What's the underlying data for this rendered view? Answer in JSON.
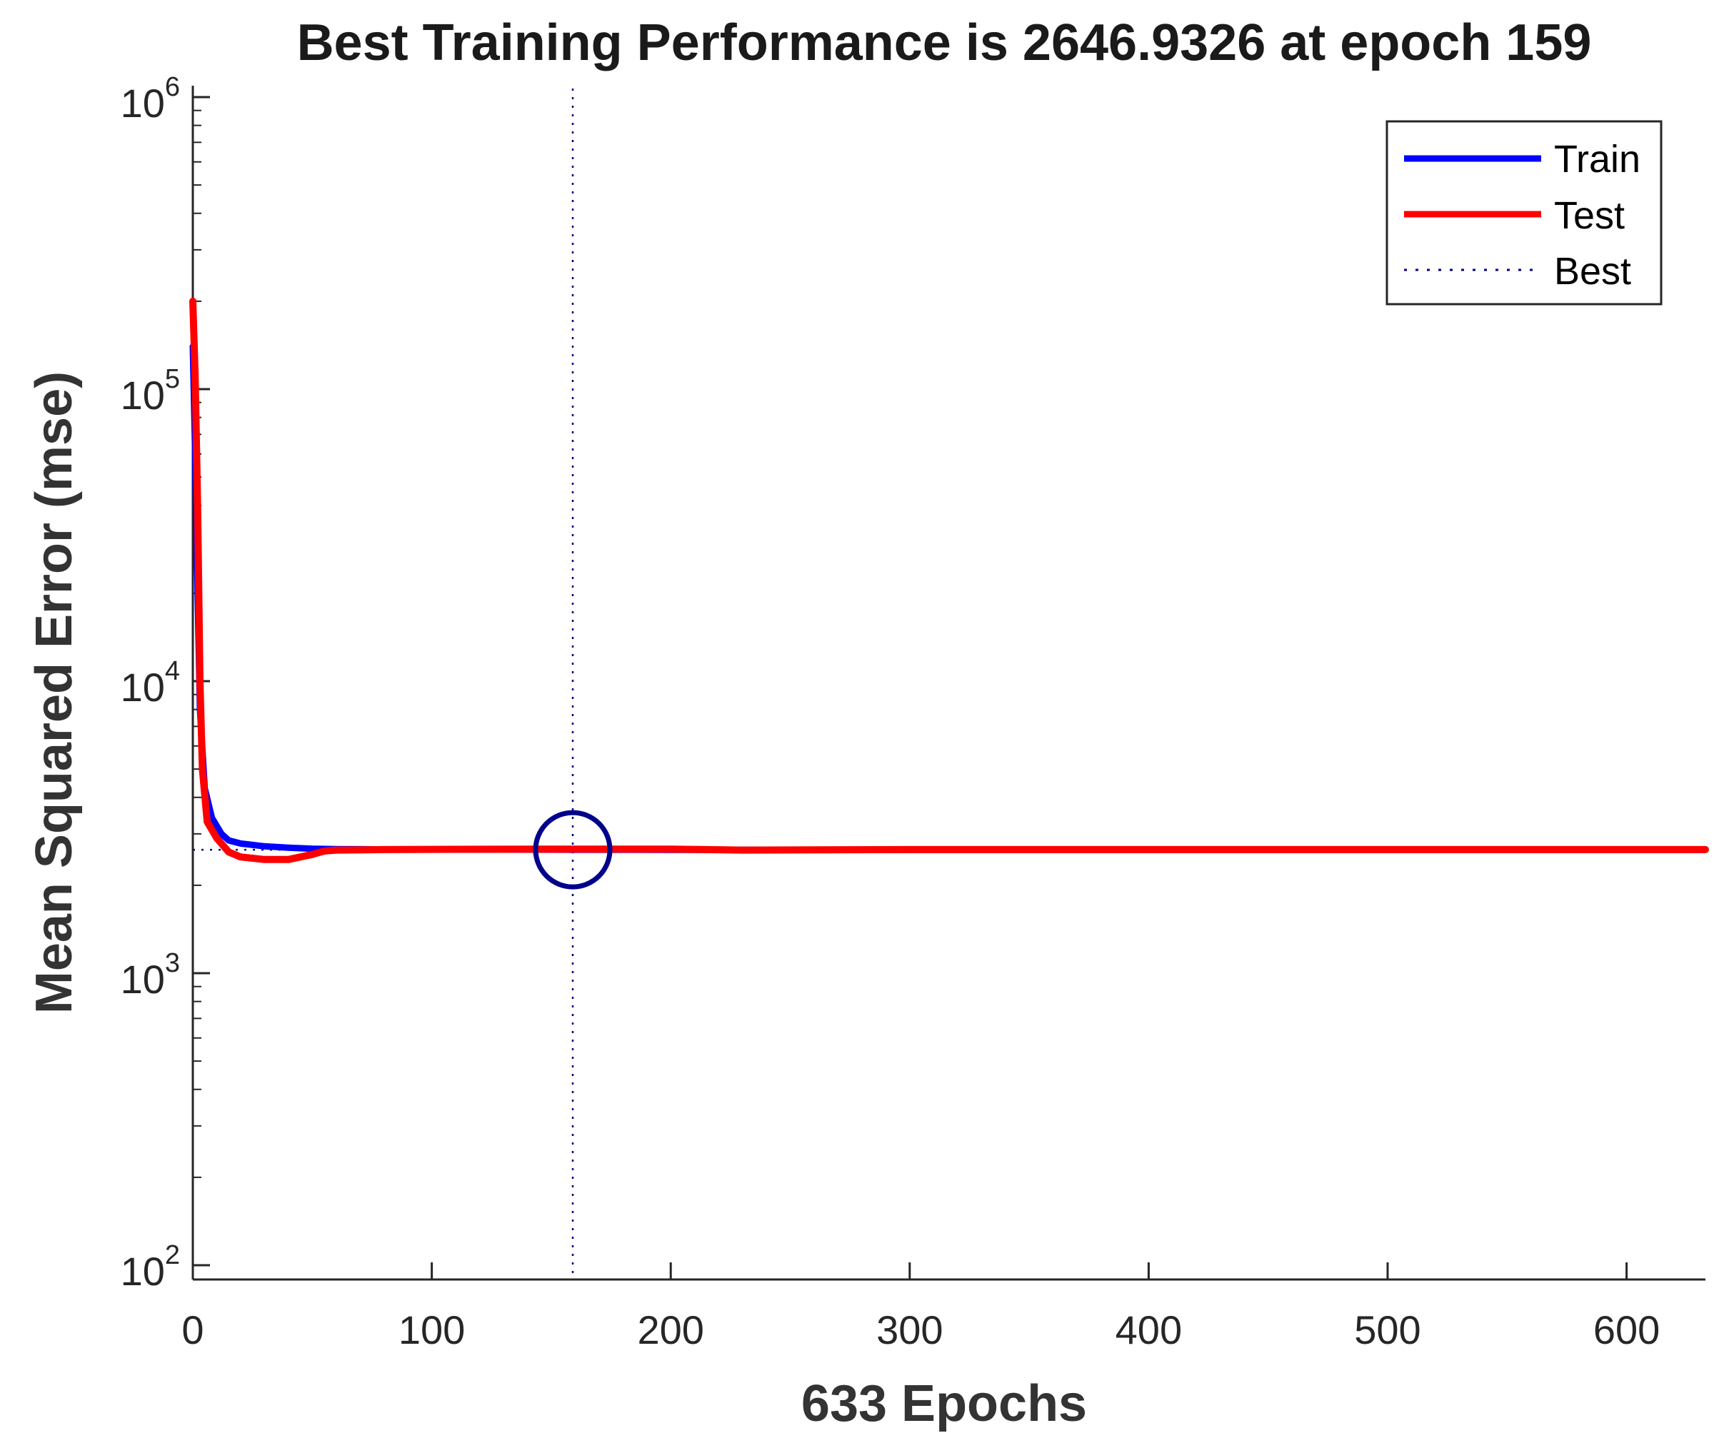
{
  "chart_data": {
    "type": "line",
    "title": "Best Training Performance is 2646.9326 at epoch 159",
    "xlabel": "633 Epochs",
    "ylabel": "Mean Squared Error  (mse)",
    "xlim": [
      0,
      633
    ],
    "ylim": [
      100,
      1000000
    ],
    "yscale": "log",
    "xticks": [
      0,
      100,
      200,
      300,
      400,
      500,
      600
    ],
    "yticks": [
      {
        "value": 100,
        "base": "10",
        "exp": "2"
      },
      {
        "value": 1000,
        "base": "10",
        "exp": "3"
      },
      {
        "value": 10000,
        "base": "10",
        "exp": "4"
      },
      {
        "value": 100000,
        "base": "10",
        "exp": "5"
      },
      {
        "value": 1000000,
        "base": "10",
        "exp": "6"
      }
    ],
    "grid": false,
    "legend_position": "top-right",
    "series": [
      {
        "name": "Train",
        "color": "#0000ff",
        "style": "solid",
        "x": [
          0,
          1,
          2,
          3,
          5,
          8,
          12,
          15,
          20,
          30,
          40,
          50,
          60,
          80,
          100,
          120,
          150,
          159,
          200,
          250,
          300,
          400,
          500,
          600,
          633
        ],
        "y": [
          140000,
          60000,
          20000,
          8000,
          4300,
          3400,
          3000,
          2850,
          2780,
          2720,
          2690,
          2670,
          2660,
          2655,
          2652,
          2650,
          2648,
          2646.9,
          2646,
          2645,
          2645,
          2645,
          2645,
          2645,
          2645
        ]
      },
      {
        "name": "Test",
        "color": "#ff0000",
        "style": "solid",
        "x": [
          0,
          1,
          2,
          3,
          4,
          6,
          10,
          15,
          20,
          30,
          40,
          50,
          55,
          60,
          80,
          100,
          150,
          200,
          230,
          300,
          400,
          500,
          600,
          633
        ],
        "y": [
          200000,
          110000,
          40000,
          10000,
          5000,
          3300,
          2900,
          2600,
          2500,
          2450,
          2450,
          2550,
          2620,
          2640,
          2650,
          2655,
          2660,
          2660,
          2640,
          2650,
          2650,
          2650,
          2650,
          2650
        ]
      }
    ],
    "best": {
      "name": "Best",
      "color": "#00008b",
      "epoch": 159,
      "value": 2646.9326
    }
  }
}
